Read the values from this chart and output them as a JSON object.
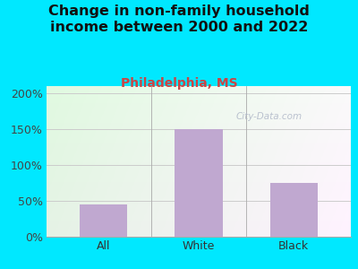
{
  "title": "Change in non-family household\nincome between 2000 and 2022",
  "subtitle": "Philadelphia, MS",
  "categories": [
    "All",
    "White",
    "Black"
  ],
  "values": [
    45,
    150,
    75
  ],
  "bar_color": "#c0a8d0",
  "title_fontsize": 11.5,
  "subtitle_fontsize": 10,
  "subtitle_color": "#cc4444",
  "title_color": "#111111",
  "tick_label_fontsize": 9,
  "ylim": [
    0,
    210
  ],
  "yticks": [
    0,
    50,
    100,
    150,
    200
  ],
  "ytick_labels": [
    "0%",
    "50%",
    "100%",
    "150%",
    "200%"
  ],
  "background_outer": "#00e8ff",
  "bg_top_left": "#e8f5e8",
  "bg_top_right": "#f5f5e0",
  "bg_bottom_left": "#d0e8d0",
  "bg_bottom_right": "#e8e8d0",
  "watermark": "City-Data.com",
  "grid_color": "#cccccc",
  "spine_color": "#aaaaaa"
}
